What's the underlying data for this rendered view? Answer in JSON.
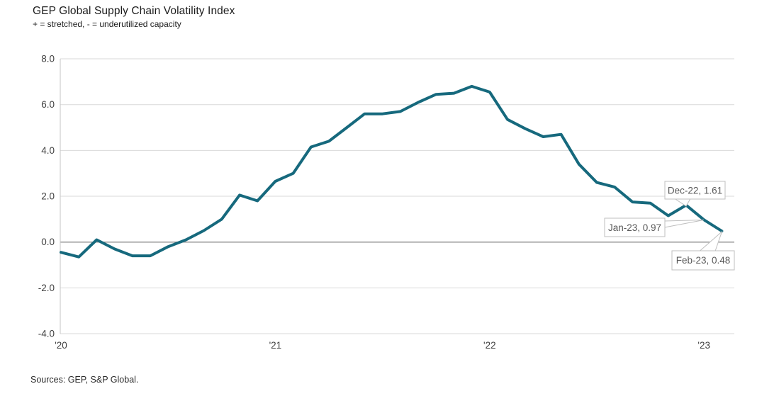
{
  "header": {
    "title": "GEP Global Supply Chain Volatility Index",
    "subtitle": "+ = stretched, - = underutilized capacity"
  },
  "footer": {
    "sources": "Sources: GEP, S&P Global."
  },
  "colors": {
    "line": "#16697D",
    "gridline": "#D9D9D9",
    "zero_line": "#959595",
    "axis": "#C6C6C6",
    "axis_label": "#404040",
    "annotation_text": "#595959",
    "annotation_border": "#BFBFBF",
    "background": "#FFFFFF"
  },
  "chart_data": {
    "type": "line",
    "title": "GEP Global Supply Chain Volatility Index",
    "subtitle": "+ = stretched, - = underutilized capacity",
    "series_name": "GEP Global Supply Chain Volatility Index",
    "categories": [
      "Jan-20",
      "Feb-20",
      "Mar-20",
      "Apr-20",
      "May-20",
      "Jun-20",
      "Jul-20",
      "Aug-20",
      "Sep-20",
      "Oct-20",
      "Nov-20",
      "Dec-20",
      "Jan-21",
      "Feb-21",
      "Mar-21",
      "Apr-21",
      "May-21",
      "Jun-21",
      "Jul-21",
      "Aug-21",
      "Sep-21",
      "Oct-21",
      "Nov-21",
      "Dec-21",
      "Jan-22",
      "Feb-22",
      "Mar-22",
      "Apr-22",
      "May-22",
      "Jun-22",
      "Jul-22",
      "Aug-22",
      "Sep-22",
      "Oct-22",
      "Nov-22",
      "Dec-22",
      "Jan-23",
      "Feb-23"
    ],
    "values": [
      -0.45,
      -0.65,
      0.1,
      -0.3,
      -0.6,
      -0.6,
      -0.2,
      0.1,
      0.5,
      1.0,
      2.05,
      1.8,
      2.65,
      3.0,
      4.15,
      4.4,
      5.0,
      5.6,
      5.6,
      5.7,
      6.1,
      6.45,
      6.5,
      6.8,
      6.55,
      5.35,
      4.95,
      4.6,
      4.7,
      3.4,
      2.6,
      2.4,
      1.75,
      1.7,
      1.15,
      1.61,
      0.97,
      0.48
    ],
    "ylim": [
      -4.0,
      8.0
    ],
    "yticks": [
      {
        "value": 8,
        "label": "8.0"
      },
      {
        "value": 6,
        "label": "6.0"
      },
      {
        "value": 4,
        "label": "4.0"
      },
      {
        "value": 2,
        "label": "2.0"
      },
      {
        "value": 0,
        "label": "0.0"
      },
      {
        "value": -2,
        "label": "-2.0"
      },
      {
        "value": -4,
        "label": "-4.0"
      }
    ],
    "xticks": [
      {
        "index": 0,
        "label": "'20"
      },
      {
        "index": 12,
        "label": "'21"
      },
      {
        "index": 24,
        "label": "'22"
      },
      {
        "index": 36,
        "label": "'23"
      }
    ],
    "grid": "horizontal",
    "legend": "none",
    "annotations": [
      {
        "label": "Dec-22, 1.61",
        "category": "Dec-22",
        "value": 1.61
      },
      {
        "label": "Jan-23, 0.97",
        "category": "Jan-23",
        "value": 0.97
      },
      {
        "label": "Feb-23, 0.48",
        "category": "Feb-23",
        "value": 0.48
      }
    ]
  }
}
